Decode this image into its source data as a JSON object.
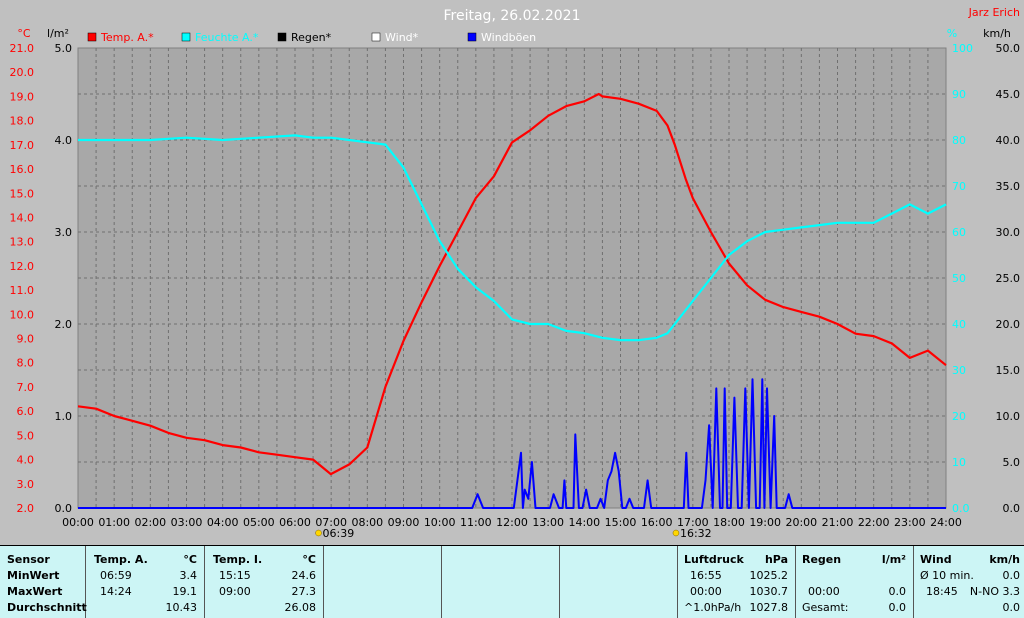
{
  "header": {
    "title": "Freitag, 26.02.2021",
    "author": "Jarz Erich"
  },
  "axes": {
    "temp_unit": "°C",
    "rain_unit": "l/m²",
    "humidity_unit": "%",
    "wind_unit": "km/h",
    "temp_ticks": [
      "2.0",
      "3.0",
      "4.0",
      "5.0",
      "6.0",
      "7.0",
      "8.0",
      "9.0",
      "10.0",
      "11.0",
      "12.0",
      "13.0",
      "14.0",
      "15.0",
      "16.0",
      "17.0",
      "18.0",
      "19.0",
      "20.0",
      "21.0"
    ],
    "rain_ticks": [
      "0.0",
      "1.0",
      "2.0",
      "3.0",
      "4.0",
      "5.0"
    ],
    "humidity_ticks": [
      "0.0",
      "10",
      "20",
      "30",
      "40",
      "50",
      "60",
      "70",
      "80",
      "90",
      "100"
    ],
    "wind_ticks": [
      "0.0",
      "5.0",
      "10.0",
      "15.0",
      "20.0",
      "25.0",
      "30.0",
      "35.0",
      "40.0",
      "45.0",
      "50.0"
    ],
    "time_ticks": [
      "00:00",
      "01:00",
      "02:00",
      "03:00",
      "04:00",
      "05:00",
      "06:00",
      "07:00",
      "08:00",
      "09:00",
      "10:00",
      "11:00",
      "12:00",
      "13:00",
      "14:00",
      "15:00",
      "16:00",
      "17:00",
      "18:00",
      "19:00",
      "20:00",
      "21:00",
      "22:00",
      "23:00",
      "24:00"
    ],
    "sunrise": "06:39",
    "sunset": "16:32"
  },
  "legend": [
    {
      "name": "Temp. A.*",
      "color": "#ff0000"
    },
    {
      "name": "Feuchte A.*",
      "color": "#00ffff"
    },
    {
      "name": "Regen*",
      "color": "#000000"
    },
    {
      "name": "Wind*",
      "color": "#ffffff"
    },
    {
      "name": "Windböen",
      "color": "#0000ff"
    }
  ],
  "chart_data": {
    "type": "line",
    "title": "Freitag, 26.02.2021",
    "x_range": [
      "00:00",
      "24:00"
    ],
    "grid": true,
    "legend_position": "top-left",
    "series": [
      {
        "name": "Temp. A.*",
        "color": "#ff0000",
        "axis": "°C",
        "ylim": [
          2.0,
          21.0
        ],
        "x": [
          0,
          0.5,
          1,
          1.5,
          2,
          2.5,
          3,
          3.5,
          4,
          4.5,
          5,
          5.5,
          6,
          6.5,
          6.99,
          7.5,
          8,
          8.5,
          9,
          9.5,
          10,
          10.5,
          11,
          11.5,
          12,
          12.5,
          13,
          13.5,
          14,
          14.4,
          14.5,
          15,
          15.5,
          16,
          16.3,
          16.5,
          16.8,
          17,
          17.5,
          18,
          18.5,
          19,
          19.5,
          20,
          20.5,
          21,
          21.5,
          22,
          22.5,
          23,
          23.5,
          24
        ],
        "y": [
          6.2,
          6.1,
          5.8,
          5.6,
          5.4,
          5.1,
          4.9,
          4.8,
          4.6,
          4.5,
          4.3,
          4.2,
          4.1,
          4.0,
          3.4,
          3.8,
          4.5,
          7.0,
          8.9,
          10.5,
          12.0,
          13.4,
          14.8,
          15.7,
          17.1,
          17.6,
          18.2,
          18.6,
          18.8,
          19.1,
          19.0,
          18.9,
          18.7,
          18.4,
          17.8,
          17.0,
          15.6,
          14.8,
          13.4,
          12.1,
          11.2,
          10.6,
          10.3,
          10.1,
          9.9,
          9.6,
          9.2,
          9.1,
          8.8,
          8.2,
          8.5,
          7.9
        ]
      },
      {
        "name": "Feuchte A.*",
        "color": "#00ffff",
        "axis": "%",
        "ylim": [
          0,
          100
        ],
        "x": [
          0,
          1,
          2,
          3,
          4,
          5,
          6,
          6.5,
          7,
          7.5,
          8,
          8.5,
          9,
          9.5,
          10,
          10.5,
          11,
          11.5,
          12,
          12.5,
          13,
          13.5,
          14,
          14.5,
          15,
          15.5,
          16,
          16.3,
          16.5,
          17,
          17.5,
          18,
          18.5,
          19,
          19.5,
          20,
          20.5,
          21,
          21.5,
          22,
          22.5,
          23,
          23.5,
          24
        ],
        "y": [
          80,
          80,
          80,
          80.5,
          80,
          80.5,
          81,
          80.5,
          80.5,
          80,
          79.5,
          79,
          74,
          66,
          58,
          52,
          48,
          45,
          41,
          40,
          40,
          38.5,
          38,
          37,
          36.5,
          36.5,
          37,
          38,
          40,
          45,
          50,
          55,
          58,
          60,
          60.5,
          61,
          61.5,
          62,
          62,
          62,
          64,
          66,
          64,
          66
        ]
      },
      {
        "name": "Windböen",
        "color": "#0000ff",
        "axis": "km/h",
        "ylim": [
          0,
          50
        ],
        "x": [
          0,
          10.9,
          11.05,
          11.2,
          11.35,
          11.5,
          11.65,
          11.8,
          11.95,
          12.05,
          12.15,
          12.25,
          12.3,
          12.35,
          12.45,
          12.55,
          12.65,
          12.8,
          12.95,
          13.05,
          13.15,
          13.3,
          13.4,
          13.45,
          13.5,
          13.6,
          13.7,
          13.75,
          13.85,
          13.95,
          14.05,
          14.15,
          14.25,
          14.35,
          14.45,
          14.55,
          14.65,
          14.75,
          14.85,
          14.95,
          15.05,
          15.15,
          15.25,
          15.35,
          15.45,
          15.55,
          15.65,
          15.75,
          15.85,
          15.95,
          16.05,
          16.15,
          16.25,
          16.35,
          16.45,
          16.55,
          16.65,
          16.75,
          16.82,
          16.88,
          16.95,
          17.05,
          17.15,
          17.25,
          17.35,
          17.45,
          17.55,
          17.65,
          17.75,
          17.82,
          17.88,
          17.95,
          18.05,
          18.15,
          18.25,
          18.35,
          18.45,
          18.55,
          18.65,
          18.75,
          18.85,
          18.92,
          18.98,
          19.05,
          19.15,
          19.25,
          19.32,
          19.38,
          19.45,
          19.55,
          19.65,
          19.75,
          19.85,
          19.95,
          20.05,
          20.15,
          20.25,
          20.35,
          20.45,
          20.55,
          24
        ],
        "y": [
          0,
          0,
          1.5,
          0,
          0,
          0,
          0,
          0,
          0,
          0,
          3,
          6,
          0,
          2,
          1,
          5,
          0,
          0,
          0,
          0,
          1.5,
          0,
          0,
          3,
          0,
          0,
          0,
          8,
          0,
          0,
          2,
          0,
          0,
          0,
          1,
          0,
          3,
          4,
          6,
          4,
          0,
          0,
          1,
          0,
          0,
          0,
          0,
          3,
          0,
          0,
          0,
          0,
          0,
          0,
          0,
          0,
          0,
          0,
          6,
          0,
          0,
          0,
          0,
          0,
          3,
          9,
          0,
          13,
          0,
          0,
          13,
          0,
          0,
          12,
          0,
          0,
          13,
          0,
          14,
          0,
          0,
          14,
          0,
          13,
          0,
          10,
          0,
          0,
          0,
          0,
          1.5,
          0,
          0,
          0,
          0,
          0,
          0,
          0,
          0,
          0,
          0
        ]
      }
    ]
  },
  "table": {
    "sensor": {
      "header": "Sensor",
      "rows": [
        "MinWert",
        "MaxWert",
        "Durchschnitt"
      ]
    },
    "temp_a": {
      "header": "Temp. A.",
      "unit": "°C",
      "rows": [
        [
          "06:59",
          "3.4"
        ],
        [
          "14:24",
          "19.1"
        ],
        [
          "",
          "10.43"
        ]
      ]
    },
    "temp_i": {
      "header": "Temp. I.",
      "unit": "°C",
      "rows": [
        [
          "15:15",
          "24.6"
        ],
        [
          "09:00",
          "27.3"
        ],
        [
          "",
          "26.08"
        ]
      ]
    },
    "pressure": {
      "header": "Luftdruck",
      "unit": "hPa",
      "rows": [
        [
          "16:55",
          "1025.2"
        ],
        [
          "00:00",
          "1030.7"
        ],
        [
          "^1.0hPa/h",
          "1027.8"
        ]
      ]
    },
    "rain": {
      "header": "Regen",
      "unit": "l/m²",
      "rows": [
        [
          "",
          ""
        ],
        [
          "00:00",
          "0.0"
        ],
        [
          "Gesamt:",
          "0.0"
        ]
      ]
    },
    "wind": {
      "header": "Wind",
      "unit": "km/h",
      "rows": [
        [
          "Ø 10 min.",
          "0.0"
        ],
        [
          "18:45",
          "N-NO 3.3"
        ],
        [
          "",
          "0.0"
        ]
      ]
    }
  }
}
